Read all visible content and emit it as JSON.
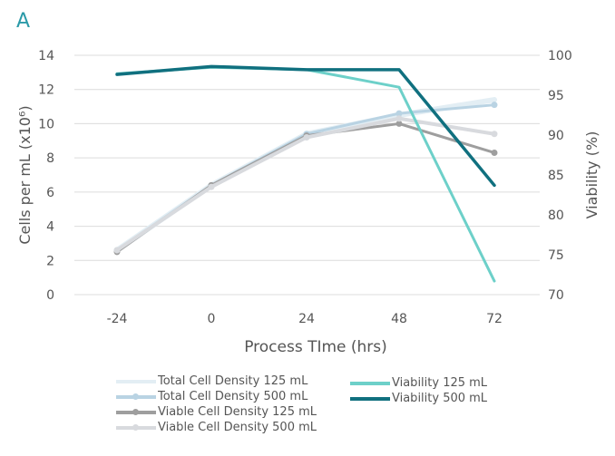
{
  "chart_data": {
    "type": "line",
    "panel_label": "A",
    "xlabel": "Process TIme (hrs)",
    "ylabel": "Cells per mL (x10⁶)",
    "y2label": "Viability (%)",
    "x": [
      -24,
      0,
      24,
      48,
      72
    ],
    "x_ticks": [
      "-24",
      "0",
      "24",
      "48",
      "72"
    ],
    "ylim": [
      0,
      14
    ],
    "y_ticks": [
      "0",
      "2",
      "4",
      "6",
      "8",
      "10",
      "12",
      "14"
    ],
    "y2lim": [
      70,
      100
    ],
    "y2_ticks": [
      "70",
      "75",
      "80",
      "85",
      "90",
      "95",
      "100"
    ],
    "grid": true,
    "legend_position": "bottom",
    "series": [
      {
        "name": "Total Cell Density 125 mL",
        "axis": "left",
        "color": "#e3eef4",
        "values": [
          2.6,
          6.4,
          9.4,
          10.5,
          11.4
        ],
        "markers": false,
        "width": 6
      },
      {
        "name": "Total Cell Density 500 mL",
        "axis": "left",
        "color": "#b9d3e3",
        "values": [
          2.6,
          6.4,
          9.4,
          10.6,
          11.1
        ],
        "markers": true,
        "width": 3
      },
      {
        "name": "Viable Cell Density 125 mL",
        "axis": "left",
        "color": "#9e9e9e",
        "values": [
          2.5,
          6.4,
          9.3,
          10.0,
          8.3
        ],
        "markers": true,
        "width": 3
      },
      {
        "name": "Viable Cell Density 500 mL",
        "axis": "left",
        "color": "#d8dade",
        "values": [
          2.6,
          6.3,
          9.2,
          10.3,
          9.4
        ],
        "markers": true,
        "width": 4
      },
      {
        "name": "Viability 125 mL",
        "axis": "right",
        "color": "#6dd0c9",
        "values": [
          97.7,
          98.5,
          98.2,
          96.0,
          71.7
        ],
        "markers": false,
        "width": 3
      },
      {
        "name": "Viability 500 mL",
        "axis": "right",
        "color": "#10707f",
        "values": [
          97.6,
          98.6,
          98.2,
          98.2,
          83.7
        ],
        "markers": false,
        "width": 3.5
      }
    ]
  }
}
